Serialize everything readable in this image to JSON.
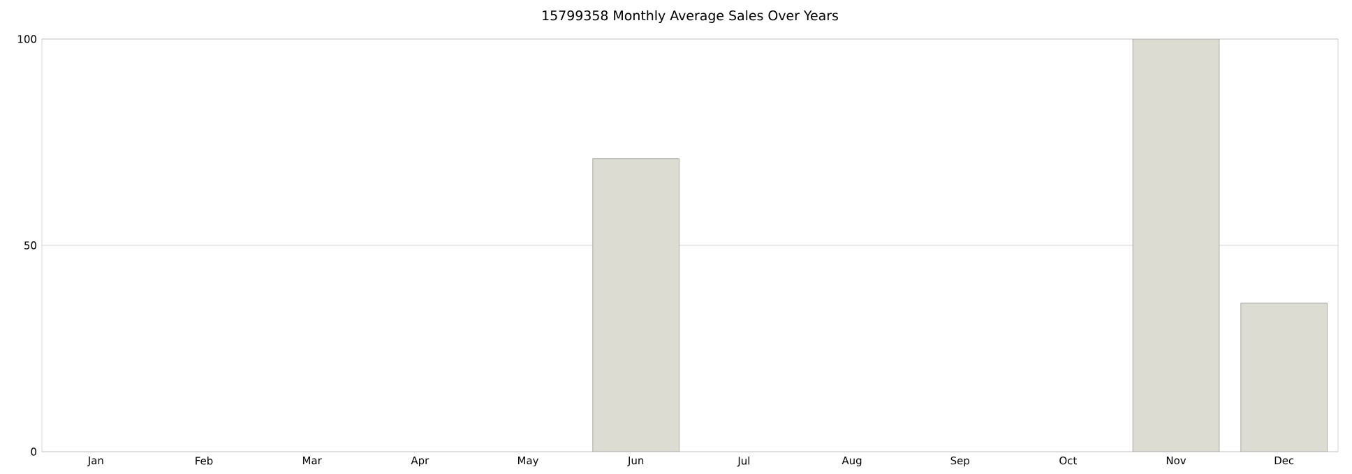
{
  "chart_data": {
    "type": "bar",
    "title": "15799358 Monthly Average Sales Over Years",
    "categories": [
      "Jan",
      "Feb",
      "Mar",
      "Apr",
      "May",
      "Jun",
      "Jul",
      "Aug",
      "Sep",
      "Oct",
      "Nov",
      "Dec"
    ],
    "values": [
      null,
      null,
      null,
      null,
      null,
      71,
      null,
      null,
      null,
      null,
      100,
      36
    ],
    "color": "#dcdcd2",
    "ylim": [
      0,
      100
    ],
    "yticks": [
      0,
      50,
      100
    ],
    "grid": "y"
  }
}
